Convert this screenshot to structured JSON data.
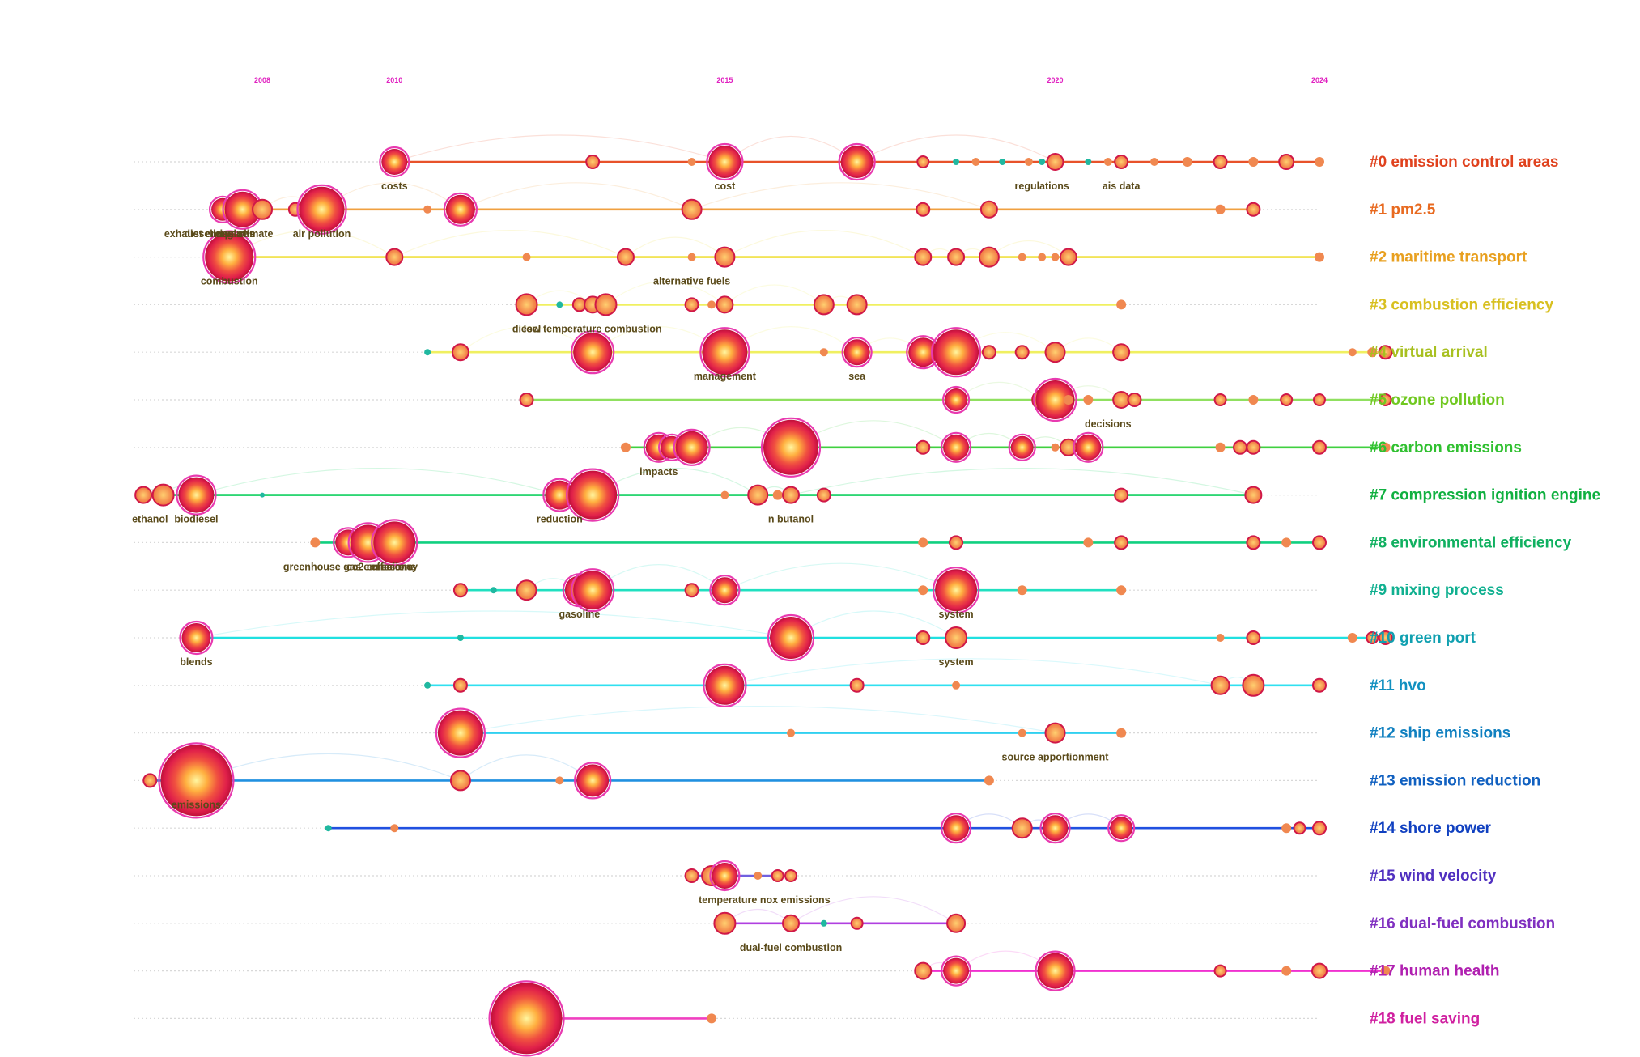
{
  "chart_data": {
    "type": "scatter",
    "title": "",
    "years": [
      2008,
      2010,
      2015,
      2020,
      2024
    ],
    "xlim": [
      2005.5,
      2024
    ],
    "clusters": [
      {
        "label": "#0 emission control areas",
        "color": "#e0421e",
        "line": "#e8522a",
        "nodes": [
          [
            2010,
            16
          ],
          [
            2013,
            8
          ],
          [
            2014.5,
            5
          ],
          [
            2015,
            20
          ],
          [
            2017,
            20
          ],
          [
            2018,
            7
          ],
          [
            2018.5,
            4
          ],
          [
            2018.8,
            5
          ],
          [
            2019.2,
            4
          ],
          [
            2019.6,
            5
          ],
          [
            2019.8,
            4
          ],
          [
            2020,
            10
          ],
          [
            2020.5,
            4
          ],
          [
            2020.8,
            5
          ],
          [
            2021,
            8
          ],
          [
            2021.5,
            5
          ],
          [
            2022,
            6
          ],
          [
            2022.5,
            8
          ],
          [
            2023,
            6
          ],
          [
            2023.5,
            9
          ],
          [
            2024,
            6
          ]
        ],
        "keywords": [
          {
            "x": 2010,
            "text": "costs"
          },
          {
            "x": 2015,
            "text": "cost"
          },
          {
            "x": 2019.8,
            "text": "regulations"
          },
          {
            "x": 2021,
            "text": "ais data"
          }
        ]
      },
      {
        "label": "#1 pm2.5",
        "color": "#e86a20",
        "line": "#f0a040",
        "nodes": [
          [
            2007.4,
            14
          ],
          [
            2007.7,
            22
          ],
          [
            2008,
            12
          ],
          [
            2008.5,
            8
          ],
          [
            2008.9,
            28
          ],
          [
            2010.5,
            5
          ],
          [
            2011,
            18
          ],
          [
            2014.5,
            12
          ],
          [
            2018,
            8
          ],
          [
            2019,
            10
          ],
          [
            2022.5,
            6
          ],
          [
            2023,
            8
          ]
        ],
        "keywords": [
          {
            "x": 2007.2,
            "text": "exhaust emissions"
          },
          {
            "x": 2007.3,
            "text": "diesel engine"
          },
          {
            "x": 2007.9,
            "text": "climate"
          },
          {
            "x": 2007.5,
            "text": "impact"
          },
          {
            "x": 2008.9,
            "text": "air pollution"
          }
        ]
      },
      {
        "label": "#2 maritime transport",
        "color": "#e8a020",
        "line": "#f0e040",
        "nodes": [
          [
            2007.5,
            30
          ],
          [
            2010,
            10
          ],
          [
            2012,
            5
          ],
          [
            2013.5,
            10
          ],
          [
            2014.5,
            5
          ],
          [
            2015,
            12
          ],
          [
            2018,
            10
          ],
          [
            2018.5,
            10
          ],
          [
            2019,
            12
          ],
          [
            2019.5,
            5
          ],
          [
            2019.8,
            5
          ],
          [
            2020,
            5
          ],
          [
            2020.2,
            10
          ],
          [
            2024,
            6
          ]
        ],
        "keywords": [
          {
            "x": 2007.5,
            "text": "combustion"
          },
          {
            "x": 2014.5,
            "text": "alternative fuels"
          }
        ]
      },
      {
        "label": "#3 combustion efficiency",
        "color": "#d8c020",
        "line": "#f0f060",
        "nodes": [
          [
            2012,
            13
          ],
          [
            2012.5,
            4
          ],
          [
            2012.8,
            8
          ],
          [
            2013,
            10
          ],
          [
            2013.2,
            13
          ],
          [
            2014.5,
            8
          ],
          [
            2014.8,
            5
          ],
          [
            2015,
            10
          ],
          [
            2016.5,
            12
          ],
          [
            2017,
            12
          ],
          [
            2021,
            6
          ]
        ],
        "keywords": [
          {
            "x": 2012,
            "text": "diesel"
          },
          {
            "x": 2013,
            "text": "low temperature combustion"
          }
        ]
      },
      {
        "label": "#4 virtual arrival",
        "color": "#a8c020",
        "line": "#f0f060",
        "nodes": [
          [
            2010.5,
            4
          ],
          [
            2011,
            10
          ],
          [
            2013,
            24
          ],
          [
            2015,
            4
          ],
          [
            2015,
            28
          ],
          [
            2016.5,
            5
          ],
          [
            2017,
            16
          ],
          [
            2018,
            18
          ],
          [
            2018.5,
            28
          ],
          [
            2019,
            8
          ],
          [
            2019.5,
            8
          ],
          [
            2020,
            12
          ],
          [
            2021,
            10
          ],
          [
            2024.5,
            5
          ],
          [
            2024.8,
            6
          ],
          [
            2025,
            8
          ]
        ],
        "keywords": [
          {
            "x": 2015,
            "text": "management"
          },
          {
            "x": 2017,
            "text": "sea"
          }
        ]
      },
      {
        "label": "#5 ozone pollution",
        "color": "#70c820",
        "line": "#90e060",
        "nodes": [
          [
            2012,
            8
          ],
          [
            2018.5,
            14
          ],
          [
            2019.8,
            12
          ],
          [
            2020,
            24
          ],
          [
            2020.2,
            6
          ],
          [
            2020.5,
            6
          ],
          [
            2021,
            10
          ],
          [
            2021.2,
            8
          ],
          [
            2022.5,
            7
          ],
          [
            2023,
            6
          ],
          [
            2023.5,
            7
          ],
          [
            2024,
            7
          ],
          [
            2025,
            7
          ]
        ],
        "keywords": [
          {
            "x": 2020.8,
            "text": "decisions"
          }
        ]
      },
      {
        "label": "#6 carbon emissions",
        "color": "#30c030",
        "line": "#40d040",
        "nodes": [
          [
            2013.5,
            6
          ],
          [
            2014,
            16
          ],
          [
            2014.2,
            14
          ],
          [
            2014.5,
            20
          ],
          [
            2016,
            34
          ],
          [
            2018,
            8
          ],
          [
            2018.5,
            16
          ],
          [
            2019.5,
            14
          ],
          [
            2020,
            5
          ],
          [
            2020.2,
            10
          ],
          [
            2020.5,
            16
          ],
          [
            2022.5,
            6
          ],
          [
            2022.8,
            8
          ],
          [
            2023,
            8
          ],
          [
            2024,
            8
          ],
          [
            2025,
            6
          ]
        ],
        "keywords": [
          {
            "x": 2014,
            "text": "impacts"
          }
        ]
      },
      {
        "label": "#7 compression ignition engine",
        "color": "#10b040",
        "line": "#10d060",
        "nodes": [
          [
            2006.2,
            10
          ],
          [
            2006.5,
            13
          ],
          [
            2007,
            22
          ],
          [
            2008,
            3
          ],
          [
            2012.5,
            18
          ],
          [
            2013,
            30
          ],
          [
            2015,
            5
          ],
          [
            2015.5,
            12
          ],
          [
            2015.8,
            6
          ],
          [
            2016.5,
            8
          ],
          [
            2016,
            10
          ],
          [
            2021,
            8
          ],
          [
            2023,
            10
          ]
        ],
        "keywords": [
          {
            "x": 2006.3,
            "text": "ethanol"
          },
          {
            "x": 2007,
            "text": "biodiesel"
          },
          {
            "x": 2012.5,
            "text": "reduction"
          },
          {
            "x": 2016,
            "text": "n butanol"
          }
        ]
      },
      {
        "label": "#8 environmental efficiency",
        "color": "#10b060",
        "line": "#10d080",
        "nodes": [
          [
            2008.8,
            6
          ],
          [
            2009.3,
            16
          ],
          [
            2009.6,
            22
          ],
          [
            2010,
            26
          ],
          [
            2018,
            6
          ],
          [
            2018.5,
            8
          ],
          [
            2020.5,
            6
          ],
          [
            2021,
            8
          ],
          [
            2023,
            8
          ],
          [
            2023.5,
            6
          ],
          [
            2024,
            8
          ]
        ],
        "keywords": [
          {
            "x": 2009.3,
            "text": "greenhouse gas emissions"
          },
          {
            "x": 2009.8,
            "text": "co2 emissions"
          },
          {
            "x": 2010,
            "text": "efficiency"
          }
        ]
      },
      {
        "label": "#9 mixing process",
        "color": "#10b090",
        "line": "#20e0c0",
        "nodes": [
          [
            2011,
            8
          ],
          [
            2011.5,
            4
          ],
          [
            2012,
            12
          ],
          [
            2012.8,
            18
          ],
          [
            2013,
            24
          ],
          [
            2014.5,
            8
          ],
          [
            2015,
            16
          ],
          [
            2018,
            6
          ],
          [
            2018.5,
            26
          ],
          [
            2019.5,
            6
          ],
          [
            2021,
            6
          ]
        ],
        "keywords": [
          {
            "x": 2012.8,
            "text": "gasoline"
          },
          {
            "x": 2018.5,
            "text": "system"
          }
        ]
      },
      {
        "label": "#10 green port",
        "color": "#10a0b0",
        "line": "#20e0e0",
        "nodes": [
          [
            2007,
            18
          ],
          [
            2011,
            4
          ],
          [
            2016,
            26
          ],
          [
            2018,
            8
          ],
          [
            2018.5,
            13
          ],
          [
            2022.5,
            5
          ],
          [
            2023,
            8
          ],
          [
            2024.5,
            6
          ],
          [
            2024.8,
            7
          ],
          [
            2025,
            8
          ]
        ],
        "keywords": [
          {
            "x": 2007,
            "text": "blends"
          },
          {
            "x": 2018.5,
            "text": "system"
          }
        ]
      },
      {
        "label": "#11 hvo",
        "color": "#1090c0",
        "line": "#30e0f0",
        "nodes": [
          [
            2010.5,
            4
          ],
          [
            2011,
            8
          ],
          [
            2015,
            24
          ],
          [
            2017,
            8
          ],
          [
            2018.5,
            5
          ],
          [
            2022.5,
            11
          ],
          [
            2023,
            13
          ],
          [
            2024,
            8
          ]
        ],
        "keywords": []
      },
      {
        "label": "#12 ship emissions",
        "color": "#1080c0",
        "line": "#30d0f0",
        "nodes": [
          [
            2011,
            28
          ],
          [
            2016,
            5
          ],
          [
            2019.5,
            5
          ],
          [
            2020,
            12
          ],
          [
            2021,
            6
          ]
        ],
        "keywords": [
          {
            "x": 2020,
            "text": "source apportionment"
          }
        ]
      },
      {
        "label": "#13 emission reduction",
        "color": "#1060c0",
        "line": "#2090e0",
        "nodes": [
          [
            2006.3,
            8
          ],
          [
            2007,
            44
          ],
          [
            2011,
            12
          ],
          [
            2012.5,
            5
          ],
          [
            2013,
            20
          ],
          [
            2019,
            6
          ]
        ],
        "keywords": [
          {
            "x": 2007,
            "text": "emissions"
          }
        ]
      },
      {
        "label": "#14 shore power",
        "color": "#1040c0",
        "line": "#2050e0",
        "nodes": [
          [
            2009,
            4
          ],
          [
            2010,
            5
          ],
          [
            2018.5,
            16
          ],
          [
            2019.5,
            12
          ],
          [
            2020,
            16
          ],
          [
            2021,
            14
          ],
          [
            2023.5,
            6
          ],
          [
            2023.7,
            7
          ],
          [
            2024,
            8
          ]
        ],
        "keywords": []
      },
      {
        "label": "#15 wind velocity",
        "color": "#5030c0",
        "line": "#7060e0",
        "nodes": [
          [
            2014.5,
            8
          ],
          [
            2014.8,
            12
          ],
          [
            2015,
            16
          ],
          [
            2015.5,
            5
          ],
          [
            2015.8,
            7
          ],
          [
            2016,
            7
          ]
        ],
        "keywords": [
          {
            "x": 2015.6,
            "text": "temperature nox emissions"
          }
        ]
      },
      {
        "label": "#16 dual-fuel combustion",
        "color": "#8030c0",
        "line": "#b040e0",
        "nodes": [
          [
            2015,
            13
          ],
          [
            2016,
            10
          ],
          [
            2016.5,
            4
          ],
          [
            2017,
            7
          ],
          [
            2018.5,
            11
          ]
        ],
        "keywords": [
          {
            "x": 2016,
            "text": "dual-fuel combustion"
          }
        ]
      },
      {
        "label": "#17 human health",
        "color": "#b020b0",
        "line": "#f030d0",
        "nodes": [
          [
            2018,
            10
          ],
          [
            2018.5,
            16
          ],
          [
            2020,
            22
          ],
          [
            2022.5,
            7
          ],
          [
            2023.5,
            6
          ],
          [
            2024,
            9
          ],
          [
            2025,
            6
          ]
        ],
        "keywords": []
      },
      {
        "label": "#18 fuel saving",
        "color": "#d020a0",
        "line": "#f040c0",
        "nodes": [
          [
            2012,
            44
          ],
          [
            2014.8,
            6
          ]
        ],
        "keywords": []
      }
    ]
  }
}
